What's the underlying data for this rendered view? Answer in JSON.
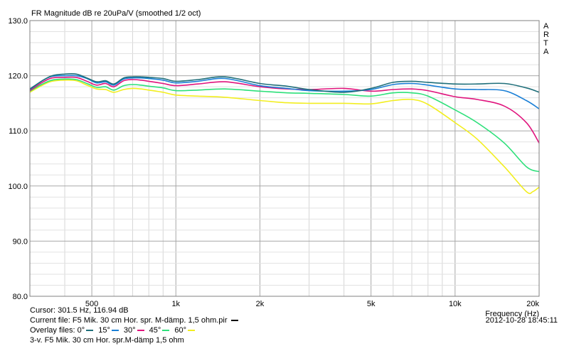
{
  "chart_data": {
    "type": "line",
    "title": "FR Magnitude dB re 20uPa/V (smoothed 1/2 oct)",
    "xlabel": "Frequency (Hz)",
    "x_scale": "log",
    "xlim": [
      300,
      20000
    ],
    "ylim": [
      80,
      130
    ],
    "grid": true,
    "y_ticks": [
      "80.0",
      "90.0",
      "100.0",
      "110.0",
      "120.0",
      "130.0"
    ],
    "y_tick_values": [
      80,
      90,
      100,
      110,
      120,
      130
    ],
    "x_ticks": [
      "500",
      "1k",
      "2k",
      "5k",
      "10k",
      "20k"
    ],
    "x_tick_values": [
      500,
      1000,
      2000,
      5000,
      10000,
      20000
    ],
    "side_label": [
      "A",
      "R",
      "T",
      "A"
    ],
    "series": [
      {
        "name": "0°",
        "color": "#1f6f7a",
        "x": [
          300,
          330,
          360,
          400,
          440,
          480,
          520,
          560,
          600,
          650,
          700,
          750,
          800,
          900,
          1000,
          1200,
          1500,
          2000,
          2500,
          3000,
          4000,
          5000,
          6000,
          7000,
          8000,
          10000,
          12000,
          15000,
          18000,
          20000
        ],
        "y": [
          117.6,
          119.0,
          120.0,
          120.3,
          120.3,
          119.6,
          118.9,
          119.1,
          118.5,
          119.6,
          119.8,
          119.8,
          119.7,
          119.5,
          119.0,
          119.3,
          119.8,
          118.6,
          118.1,
          117.5,
          117.0,
          117.7,
          118.8,
          119.0,
          118.8,
          118.5,
          118.5,
          118.6,
          117.8,
          117.0
        ]
      },
      {
        "name": "15°",
        "color": "#1a7fd6",
        "x": [
          300,
          330,
          360,
          400,
          440,
          480,
          520,
          560,
          600,
          650,
          700,
          750,
          800,
          900,
          1000,
          1200,
          1500,
          2000,
          2500,
          3000,
          4000,
          5000,
          6000,
          7000,
          8000,
          10000,
          12000,
          15000,
          18000,
          20000
        ],
        "y": [
          117.5,
          119.0,
          119.9,
          120.0,
          120.0,
          119.5,
          118.7,
          118.9,
          118.3,
          119.4,
          119.6,
          119.6,
          119.5,
          119.2,
          118.7,
          119.0,
          119.5,
          118.2,
          117.7,
          117.3,
          117.2,
          117.5,
          118.4,
          118.6,
          118.3,
          117.6,
          117.5,
          117.3,
          115.5,
          114.0
        ]
      },
      {
        "name": "30°",
        "color": "#e0147d",
        "x": [
          300,
          330,
          360,
          400,
          440,
          480,
          520,
          560,
          600,
          650,
          700,
          750,
          800,
          900,
          1000,
          1200,
          1500,
          2000,
          2500,
          3000,
          4000,
          5000,
          6000,
          7000,
          8000,
          10000,
          12000,
          15000,
          18000,
          20000
        ],
        "y": [
          117.3,
          118.7,
          119.6,
          119.7,
          119.7,
          119.0,
          118.3,
          118.6,
          118.0,
          119.1,
          119.3,
          119.2,
          119.0,
          118.6,
          118.2,
          118.5,
          118.9,
          118.0,
          117.6,
          117.5,
          117.7,
          117.2,
          117.5,
          117.6,
          117.3,
          116.2,
          115.7,
          114.5,
          111.5,
          107.8
        ]
      },
      {
        "name": "45°",
        "color": "#2de07a",
        "x": [
          300,
          330,
          360,
          400,
          440,
          480,
          520,
          560,
          600,
          650,
          700,
          750,
          800,
          900,
          1000,
          1200,
          1500,
          2000,
          2500,
          3000,
          4000,
          5000,
          6000,
          7000,
          8000,
          10000,
          12000,
          15000,
          18000,
          20000
        ],
        "y": [
          117.2,
          118.4,
          119.2,
          119.4,
          119.3,
          118.6,
          117.9,
          118.0,
          117.4,
          118.2,
          118.4,
          118.3,
          118.1,
          117.8,
          117.3,
          117.4,
          117.6,
          117.2,
          116.9,
          116.8,
          116.6,
          116.3,
          116.9,
          116.9,
          116.3,
          113.8,
          111.5,
          107.8,
          103.5,
          102.6
        ]
      },
      {
        "name": "60°",
        "color": "#f2ee20",
        "x": [
          300,
          330,
          360,
          400,
          440,
          480,
          520,
          560,
          600,
          650,
          700,
          750,
          800,
          900,
          1000,
          1200,
          1500,
          2000,
          2500,
          3000,
          4000,
          5000,
          6000,
          7000,
          8000,
          10000,
          12000,
          15000,
          18000,
          19000,
          20000
        ],
        "y": [
          117.0,
          118.2,
          119.0,
          119.2,
          119.1,
          118.3,
          117.6,
          117.5,
          117.0,
          117.5,
          117.7,
          117.6,
          117.4,
          117.0,
          116.5,
          116.3,
          116.1,
          115.5,
          115.1,
          115.0,
          115.0,
          114.9,
          115.5,
          115.7,
          114.8,
          111.5,
          108.5,
          103.5,
          99.0,
          99.0,
          99.8
        ]
      }
    ]
  },
  "footer": {
    "cursor": "Cursor: 301.5 Hz, 116.94 dB",
    "current_file": "Current file: F5 Mik. 30 cm Hor. spr. M-dämp. 1,5 ohm.pir",
    "current_file_color": "#000000",
    "overlay_prefix": "Overlay files:",
    "overlay_labels": [
      "0°",
      "15°",
      "30°",
      "45°",
      "60°"
    ],
    "note": "3-v. F5 Mik. 30 cm Hor. spr.M-dämp 1,5 ohm",
    "datetime": "2012-10-28  18:45:11"
  }
}
